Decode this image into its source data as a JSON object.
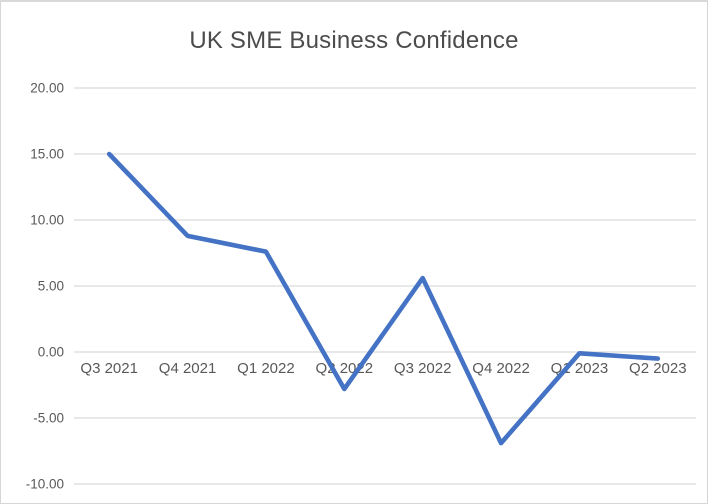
{
  "chart_data": {
    "type": "line",
    "title": "UK SME Business Confidence",
    "categories": [
      "Q3 2021",
      "Q4 2021",
      "Q1 2022",
      "Q2 2022",
      "Q3 2022",
      "Q4 2022",
      "Q1 2023",
      "Q2 2023"
    ],
    "values": [
      15.0,
      8.8,
      7.6,
      -2.8,
      5.6,
      -6.9,
      -0.1,
      -0.5
    ],
    "xlabel": "",
    "ylabel": "",
    "ylim": [
      -10,
      20
    ],
    "yticks": [
      {
        "value": 20,
        "label": "20.00"
      },
      {
        "value": 15,
        "label": "15.00"
      },
      {
        "value": 10,
        "label": "10.00"
      },
      {
        "value": 5,
        "label": "5.00"
      },
      {
        "value": 0,
        "label": "0.00"
      },
      {
        "value": -5,
        "label": "-5.00"
      },
      {
        "value": -10,
        "label": "-10.00"
      }
    ],
    "grid": true,
    "legend": false,
    "colors": {
      "line": "#4472C4",
      "gridline": "#D9D9D9",
      "axis_text": "#595959",
      "title_text": "#4C4C4C",
      "border": "#D6D6D6",
      "background": "#FFFFFF"
    }
  }
}
